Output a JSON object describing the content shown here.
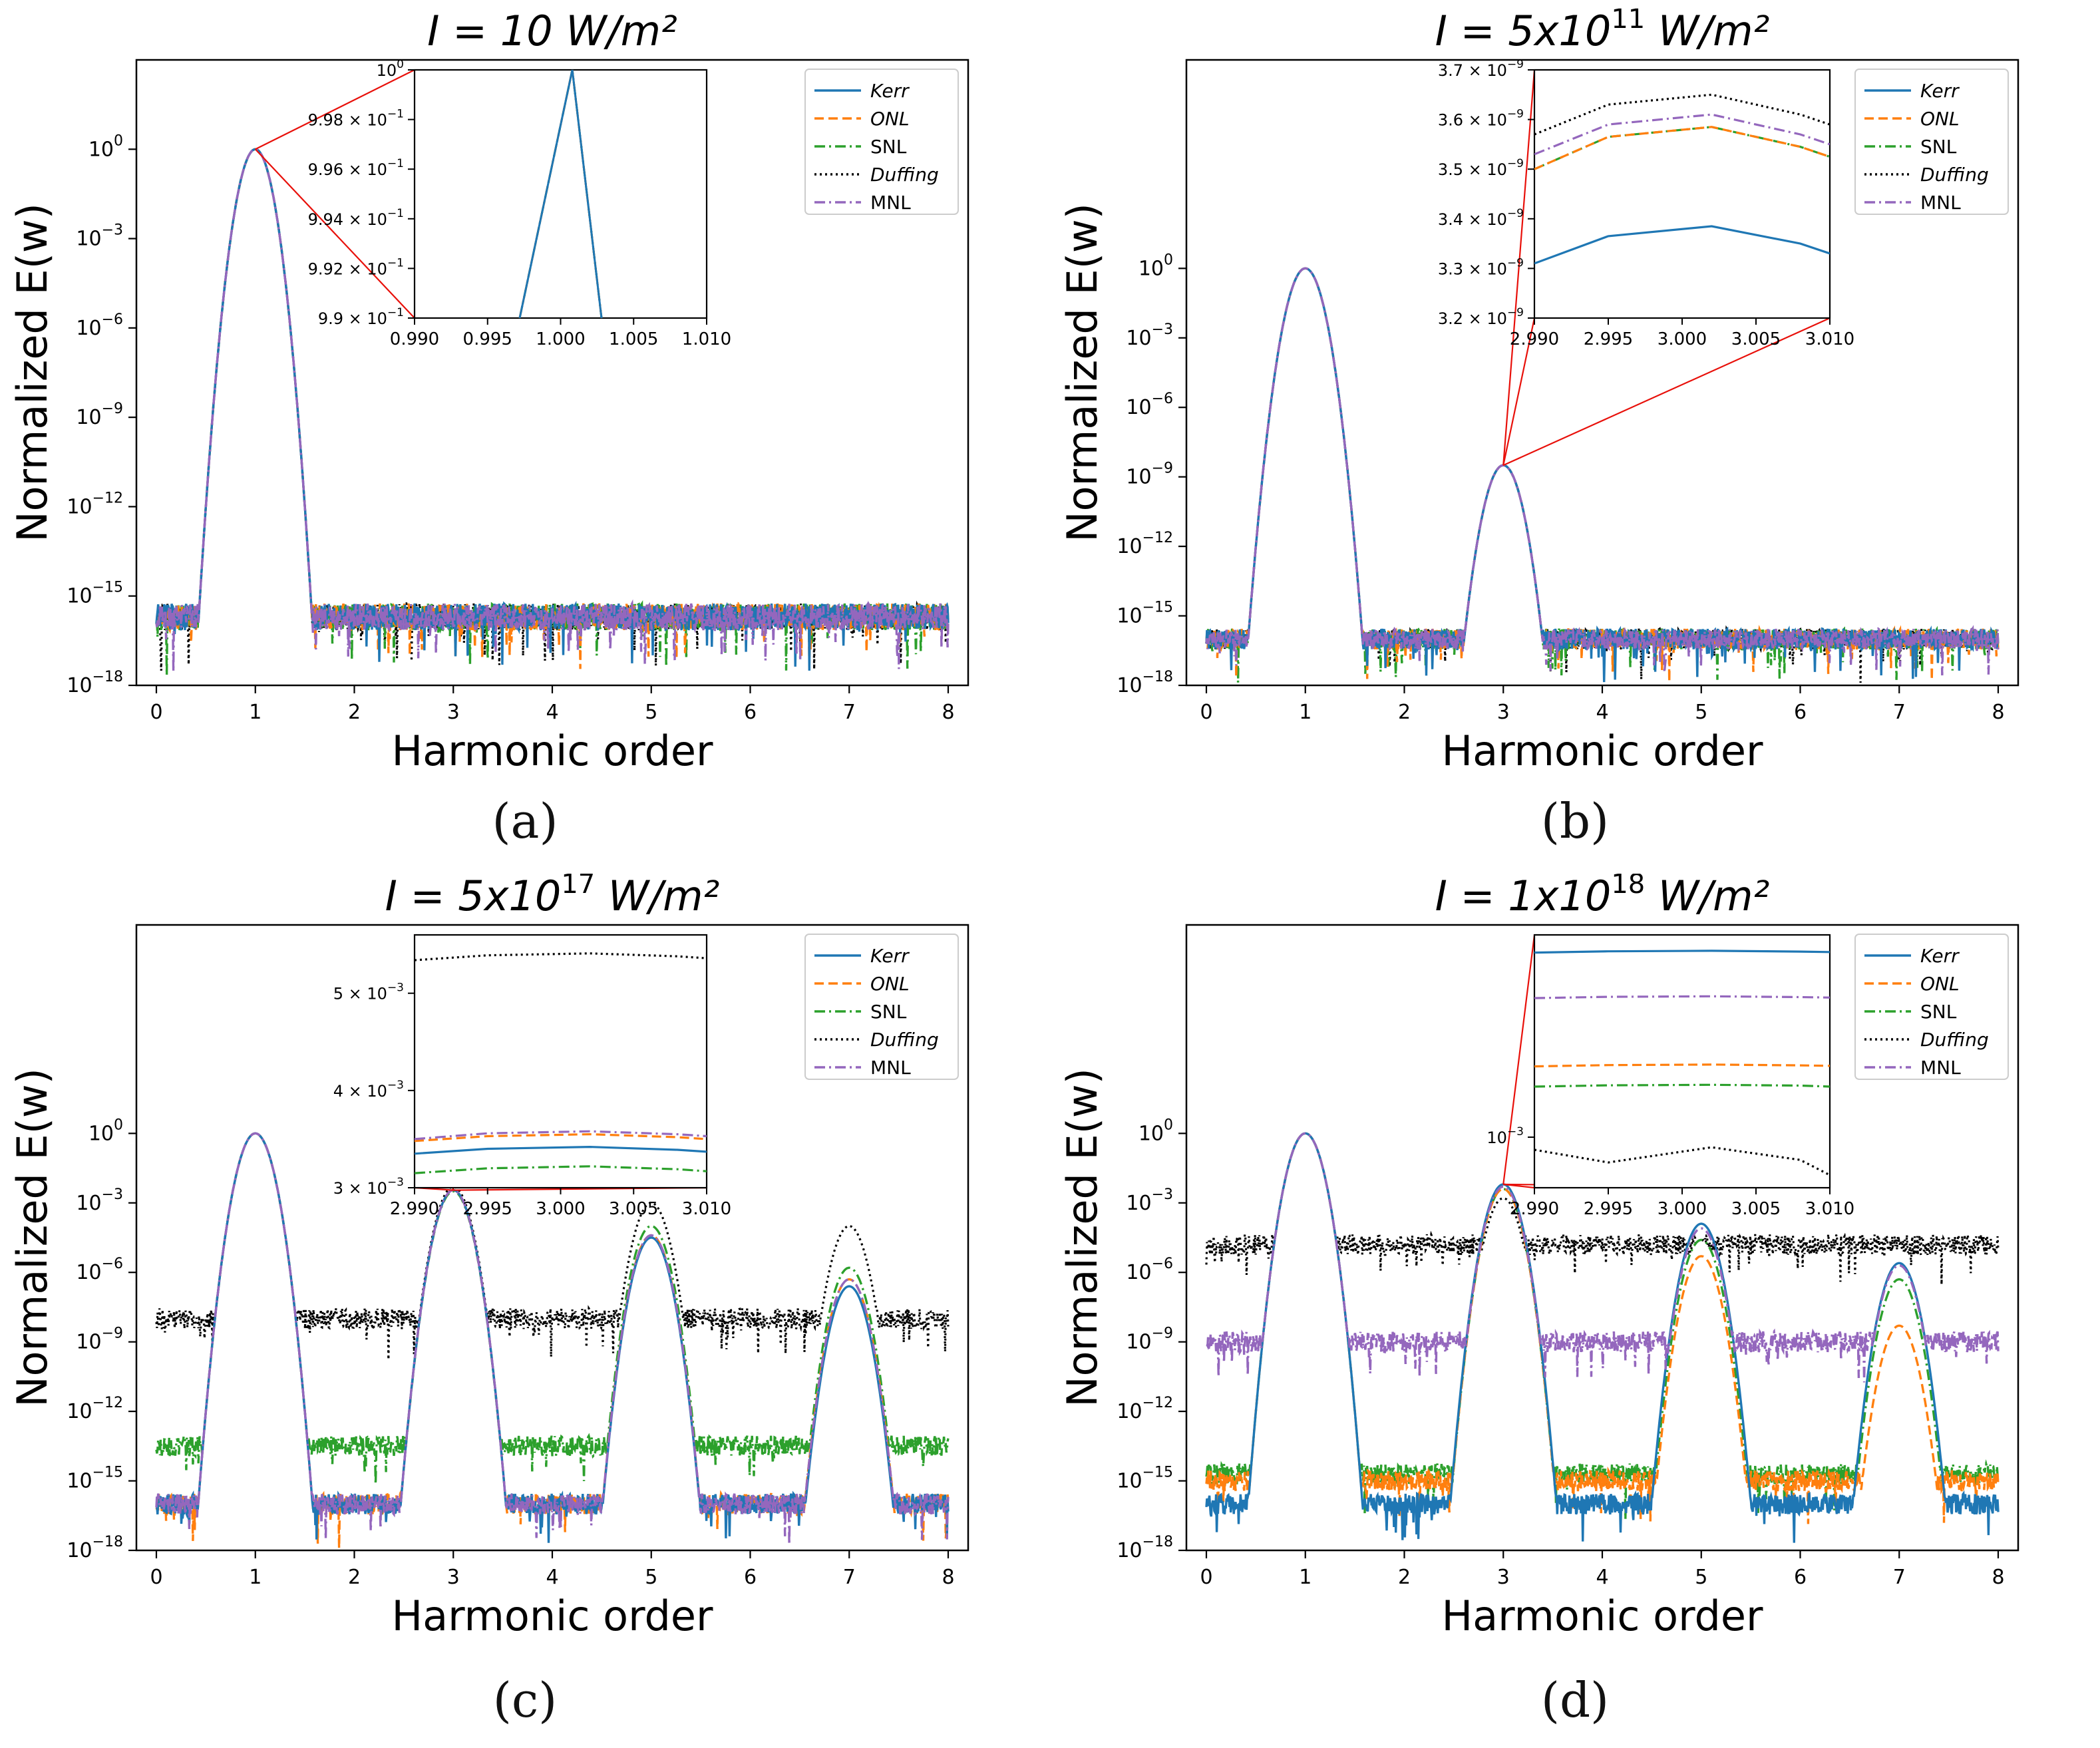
{
  "legend_entries": [
    "Kerr",
    "ONL",
    "SNL",
    "Duffing",
    "MNL"
  ],
  "series_colors": {
    "Kerr": "#1f77b4",
    "ONL": "#ff7f0e",
    "SNL": "#2ca02c",
    "Duffing": "#000000",
    "MNL": "#9467bd"
  },
  "chart_data": [
    {
      "panel": "a",
      "type": "line",
      "caption": "(a)",
      "title": "I = 10 W/m²",
      "title_main": "I = 10",
      "title_exp": "",
      "title_units": " W/m²",
      "xlabel": "Harmonic order",
      "ylabel": "Normalized E(w)",
      "yscale": "log",
      "xlim": [
        0,
        8
      ],
      "ylim_exp": [
        -18,
        3
      ],
      "x_ticks": [
        "0",
        "1",
        "2",
        "3",
        "4",
        "5",
        "6",
        "7",
        "8"
      ],
      "y_tick_exps": [
        -18,
        -15,
        -12,
        -9,
        -6,
        -3,
        0
      ],
      "legend": "top-right",
      "noise_floor_exp": {
        "Kerr": -15.7,
        "ONL": -15.7,
        "SNL": -15.7,
        "Duffing": -15.7,
        "MNL": -15.7
      },
      "peaks": [
        {
          "harmonic": 1,
          "exp": {
            "Kerr": 0,
            "ONL": 0,
            "SNL": 0,
            "Duffing": 0,
            "MNL": 0
          }
        }
      ],
      "inset": {
        "xlim": [
          0.99,
          1.01
        ],
        "x_ticks": [
          "0.990",
          "0.995",
          "1.000",
          "1.005",
          "1.010"
        ],
        "y_ticks": [
          {
            "mantissa": "9.9 × 10",
            "exp": "−1"
          },
          {
            "mantissa": "9.92 × 10",
            "exp": "−1"
          },
          {
            "mantissa": "9.94 × 10",
            "exp": "−1"
          },
          {
            "mantissa": "9.96 × 10",
            "exp": "−1"
          },
          {
            "mantissa": "9.98 × 10",
            "exp": "−1"
          },
          {
            "mantissa": "10",
            "exp": "0"
          }
        ],
        "series_values": {
          "Kerr": [
            [
              0.9972,
              0.99
            ],
            [
              1.0008,
              1.0
            ],
            [
              1.0028,
              0.99
            ]
          ]
        }
      }
    },
    {
      "panel": "b",
      "type": "line",
      "caption": "(b)",
      "title": "I = 5x10^11 W/m²",
      "title_main": "I = 5x10",
      "title_exp": "11",
      "title_units": " W/m²",
      "xlabel": "Harmonic order",
      "ylabel": "Normalized E(w)",
      "yscale": "log",
      "xlim": [
        0,
        8
      ],
      "ylim_exp": [
        -18,
        9
      ],
      "x_ticks": [
        "0",
        "1",
        "2",
        "3",
        "4",
        "5",
        "6",
        "7",
        "8"
      ],
      "y_tick_exps": [
        -18,
        -15,
        -12,
        -9,
        -6,
        -3,
        0
      ],
      "legend": "top-right",
      "noise_floor_exp": {
        "Kerr": -16.0,
        "ONL": -16.0,
        "SNL": -16.0,
        "Duffing": -16.0,
        "MNL": -16.0
      },
      "peaks": [
        {
          "harmonic": 1,
          "exp": {
            "Kerr": 0,
            "ONL": 0,
            "SNL": 0,
            "Duffing": 0,
            "MNL": 0
          }
        },
        {
          "harmonic": 3,
          "exp": {
            "Kerr": -8.5,
            "ONL": -8.5,
            "SNL": -8.5,
            "Duffing": -8.5,
            "MNL": -8.5
          }
        }
      ],
      "inset": {
        "xlim": [
          2.99,
          3.01
        ],
        "x_ticks": [
          "2.990",
          "2.995",
          "3.000",
          "3.005",
          "3.010"
        ],
        "y_ticks": [
          {
            "mantissa": "3.2 × 10",
            "exp": "−9"
          },
          {
            "mantissa": "3.3 × 10",
            "exp": "−9"
          },
          {
            "mantissa": "3.4 × 10",
            "exp": "−9"
          },
          {
            "mantissa": "3.5 × 10",
            "exp": "−9"
          },
          {
            "mantissa": "3.6 × 10",
            "exp": "−9"
          },
          {
            "mantissa": "3.7 × 10",
            "exp": "−9"
          }
        ],
        "ylim": [
          3.2,
          3.7
        ],
        "x": [
          2.99,
          2.995,
          3.002,
          3.008,
          3.01
        ],
        "series_values": {
          "Kerr": [
            3.31,
            3.365,
            3.385,
            3.35,
            3.33
          ],
          "ONL": [
            3.5,
            3.565,
            3.585,
            3.545,
            3.525
          ],
          "SNL": [
            3.5,
            3.565,
            3.585,
            3.545,
            3.525
          ],
          "Duffing": [
            3.57,
            3.63,
            3.65,
            3.61,
            3.59
          ],
          "MNL": [
            3.53,
            3.59,
            3.61,
            3.57,
            3.55
          ]
        }
      }
    },
    {
      "panel": "c",
      "type": "line",
      "caption": "(c)",
      "title": "I = 5x10^17 W/m²",
      "title_main": "I = 5x10",
      "title_exp": "17",
      "title_units": " W/m²",
      "xlabel": "Harmonic order",
      "ylabel": "Normalized E(w)",
      "yscale": "log",
      "xlim": [
        0,
        8
      ],
      "ylim_exp": [
        -18,
        9
      ],
      "x_ticks": [
        "0",
        "1",
        "2",
        "3",
        "4",
        "5",
        "6",
        "7",
        "8"
      ],
      "y_tick_exps": [
        -18,
        -15,
        -12,
        -9,
        -6,
        -3,
        0
      ],
      "legend": "top-right",
      "noise_floor_exp": {
        "Kerr": -16.0,
        "ONL": -16.0,
        "SNL": -13.5,
        "Duffing": -8.0,
        "MNL": -16.0
      },
      "peaks": [
        {
          "harmonic": 1,
          "exp": {
            "Kerr": 0,
            "ONL": 0,
            "SNL": 0,
            "Duffing": 0,
            "MNL": 0
          }
        },
        {
          "harmonic": 3,
          "exp": {
            "Kerr": -2.45,
            "ONL": -2.45,
            "SNL": -2.5,
            "Duffing": -2.3,
            "MNL": -2.45
          }
        },
        {
          "harmonic": 5,
          "exp": {
            "Kerr": -4.5,
            "ONL": -4.4,
            "SNL": -4.0,
            "Duffing": -3.0,
            "MNL": -4.4
          }
        },
        {
          "harmonic": 7,
          "exp": {
            "Kerr": -6.6,
            "ONL": -6.3,
            "SNL": -5.8,
            "Duffing": -4.0,
            "MNL": -6.3
          }
        }
      ],
      "inset": {
        "xlim": [
          2.99,
          3.01
        ],
        "x_ticks": [
          "2.990",
          "2.995",
          "3.000",
          "3.005",
          "3.010"
        ],
        "y_ticks": [
          {
            "mantissa": "3 × 10",
            "exp": "−3"
          },
          {
            "mantissa": "4 × 10",
            "exp": "−3"
          },
          {
            "mantissa": "5 × 10",
            "exp": "−3"
          }
        ],
        "ylim": [
          3.0,
          5.6
        ],
        "x": [
          2.99,
          2.995,
          3.002,
          3.008,
          3.01
        ],
        "series_values": {
          "Kerr": [
            3.35,
            3.4,
            3.42,
            3.39,
            3.37
          ],
          "ONL": [
            3.48,
            3.53,
            3.55,
            3.52,
            3.5
          ],
          "SNL": [
            3.15,
            3.2,
            3.22,
            3.19,
            3.17
          ],
          "Duffing": [
            5.34,
            5.39,
            5.41,
            5.38,
            5.36
          ],
          "MNL": [
            3.5,
            3.56,
            3.58,
            3.55,
            3.53
          ]
        }
      }
    },
    {
      "panel": "d",
      "type": "line",
      "caption": "(d)",
      "title": "I = 1x10^18 W/m²",
      "title_main": "I = 1x10",
      "title_exp": "18",
      "title_units": " W/m²",
      "xlabel": "Harmonic order",
      "ylabel": "Normalized E(w)",
      "yscale": "log",
      "xlim": [
        0,
        8
      ],
      "ylim_exp": [
        -18,
        9
      ],
      "x_ticks": [
        "0",
        "1",
        "2",
        "3",
        "4",
        "5",
        "6",
        "7",
        "8"
      ],
      "y_tick_exps": [
        -18,
        -15,
        -12,
        -9,
        -6,
        -3,
        0
      ],
      "legend": "top-right",
      "noise_floor_exp": {
        "Kerr": -16.0,
        "ONL": -15.0,
        "SNL": -14.7,
        "Duffing": -4.8,
        "MNL": -9.0
      },
      "peaks": [
        {
          "harmonic": 1,
          "exp": {
            "Kerr": 0,
            "ONL": 0,
            "SNL": 0,
            "Duffing": 0,
            "MNL": 0
          }
        },
        {
          "harmonic": 3,
          "exp": {
            "Kerr": -2.2,
            "ONL": -2.4,
            "SNL": -2.4,
            "Duffing": -2.8,
            "MNL": -2.3
          }
        },
        {
          "harmonic": 5,
          "exp": {
            "Kerr": -3.9,
            "ONL": -5.3,
            "SNL": -4.6,
            "Duffing": -4.6,
            "MNL": -4.1
          }
        },
        {
          "harmonic": 7,
          "exp": {
            "Kerr": -5.6,
            "ONL": -8.3,
            "SNL": -6.3,
            "Duffing": -5.0,
            "MNL": -5.7
          }
        }
      ],
      "inset": {
        "xlim": [
          2.99,
          3.01
        ],
        "x_ticks": [
          "2.990",
          "2.995",
          "3.000",
          "3.005",
          "3.010"
        ],
        "y_ticks": [
          {
            "mantissa": "10",
            "exp": "−3"
          }
        ],
        "ylim_exp": [
          -3.2,
          -2.2
        ],
        "x": [
          2.99,
          2.995,
          3.002,
          3.008,
          3.01
        ],
        "series_values_exp": {
          "Kerr": [
            -2.27,
            -2.265,
            -2.263,
            -2.266,
            -2.268
          ],
          "ONL": [
            -2.72,
            -2.715,
            -2.713,
            -2.716,
            -2.718
          ],
          "SNL": [
            -2.8,
            -2.795,
            -2.793,
            -2.796,
            -2.8
          ],
          "Duffing": [
            -3.05,
            -3.1,
            -3.04,
            -3.09,
            -3.15
          ],
          "MNL": [
            -2.45,
            -2.445,
            -2.443,
            -2.446,
            -2.448
          ]
        }
      }
    }
  ]
}
